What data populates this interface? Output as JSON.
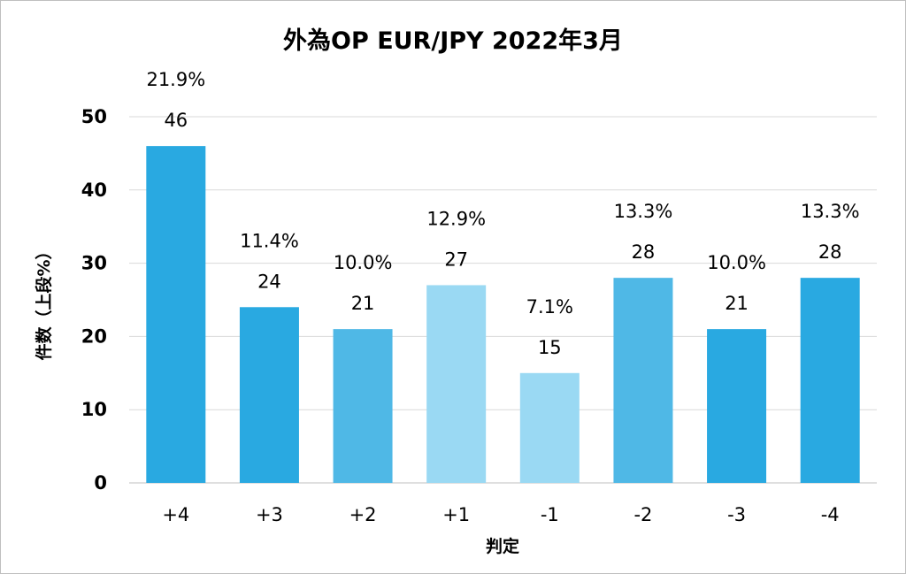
{
  "chart_data": {
    "type": "bar",
    "title": "外為OP EUR/JPY 2022年3月",
    "xlabel": "判定",
    "ylabel": "件数（上段%）",
    "ylim": [
      0,
      50
    ],
    "yticks": [
      "0",
      "10",
      "20",
      "30",
      "40",
      "50"
    ],
    "grid": true,
    "legend": "none",
    "categories": [
      "+4",
      "+3",
      "+2",
      "+1",
      "-1",
      "-2",
      "-3",
      "-4"
    ],
    "values": [
      46,
      24,
      21,
      27,
      15,
      28,
      21,
      28
    ],
    "value_labels": [
      "46",
      "24",
      "21",
      "27",
      "15",
      "28",
      "21",
      "28"
    ],
    "percent_labels": [
      "21.9%",
      "11.4%",
      "10.0%",
      "12.9%",
      "7.1%",
      "13.3%",
      "10.0%",
      "13.3%"
    ],
    "bar_colors": [
      "#29a9e1",
      "#29a9e1",
      "#4fb8e6",
      "#9ad9f3",
      "#9ad9f3",
      "#4fb8e6",
      "#29a9e1",
      "#29a9e1"
    ],
    "grid_color": "#d9d9d9",
    "axis_color": "#bfbfbf"
  }
}
